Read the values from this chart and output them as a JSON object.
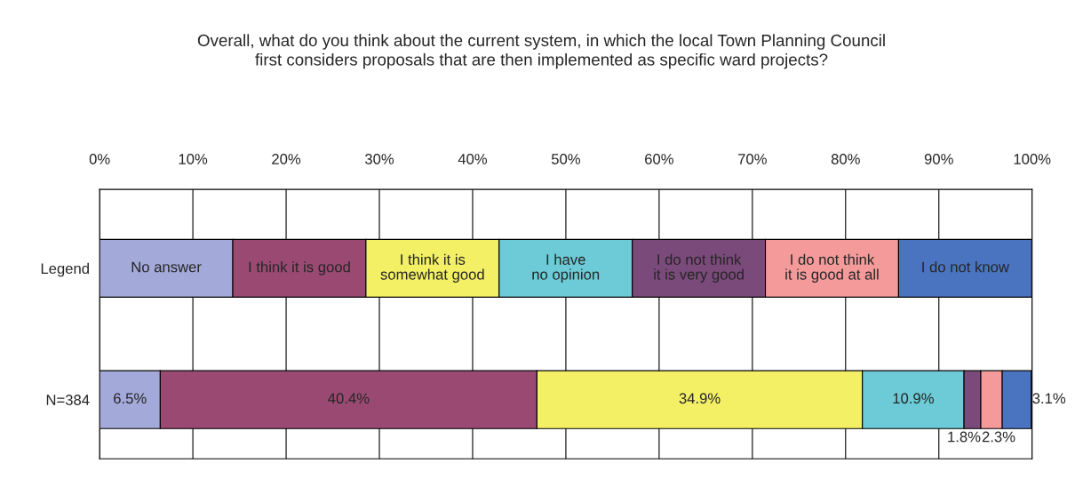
{
  "chart_data": {
    "type": "bar",
    "orientation": "horizontal",
    "stacked": true,
    "title": "Overall, what do you think about the current system, in which the local Town Planning Council\nfirst considers proposals that are then implemented as specific ward projects?",
    "categories": [
      "Legend",
      "N=384"
    ],
    "series": [
      {
        "name": "No answer",
        "color": "#a3a9d8",
        "values": [
          14.28,
          6.5
        ],
        "value_labels": [
          null,
          "6.5%"
        ]
      },
      {
        "name": "I think it is good",
        "color": "#9a4a72",
        "values": [
          14.28,
          40.4
        ],
        "value_labels": [
          null,
          "40.4%"
        ]
      },
      {
        "name": "I think it is\nsomewhat good",
        "color": "#f4f066",
        "values": [
          14.28,
          34.9
        ],
        "value_labels": [
          null,
          "34.9%"
        ]
      },
      {
        "name": "I have\nno opinion",
        "color": "#6ccbd6",
        "values": [
          14.28,
          10.9
        ],
        "value_labels": [
          null,
          "10.9%"
        ]
      },
      {
        "name": "I do not think\nit is very good",
        "color": "#7a4a7a",
        "values": [
          14.28,
          1.8
        ],
        "value_labels": [
          null,
          "1.8%"
        ]
      },
      {
        "name": "I do not think\nit is good at all",
        "color": "#f49a9a",
        "values": [
          14.28,
          2.3
        ],
        "value_labels": [
          null,
          "2.3%"
        ]
      },
      {
        "name": "I do not know",
        "color": "#4a74c0",
        "values": [
          14.28,
          3.1
        ],
        "value_labels": [
          null,
          "3.1%"
        ]
      }
    ],
    "xlim": [
      0,
      100
    ],
    "xticks": [
      {
        "value": 0,
        "label": "0%"
      },
      {
        "value": 10,
        "label": "10%"
      },
      {
        "value": 20,
        "label": "20%"
      },
      {
        "value": 30,
        "label": "30%"
      },
      {
        "value": 40,
        "label": "40%"
      },
      {
        "value": 50,
        "label": "50%"
      },
      {
        "value": 60,
        "label": "60%"
      },
      {
        "value": 70,
        "label": "70%"
      },
      {
        "value": 80,
        "label": "80%"
      },
      {
        "value": 90,
        "label": "90%"
      },
      {
        "value": 100,
        "label": "100%"
      }
    ],
    "grid": "x",
    "legend": false
  }
}
